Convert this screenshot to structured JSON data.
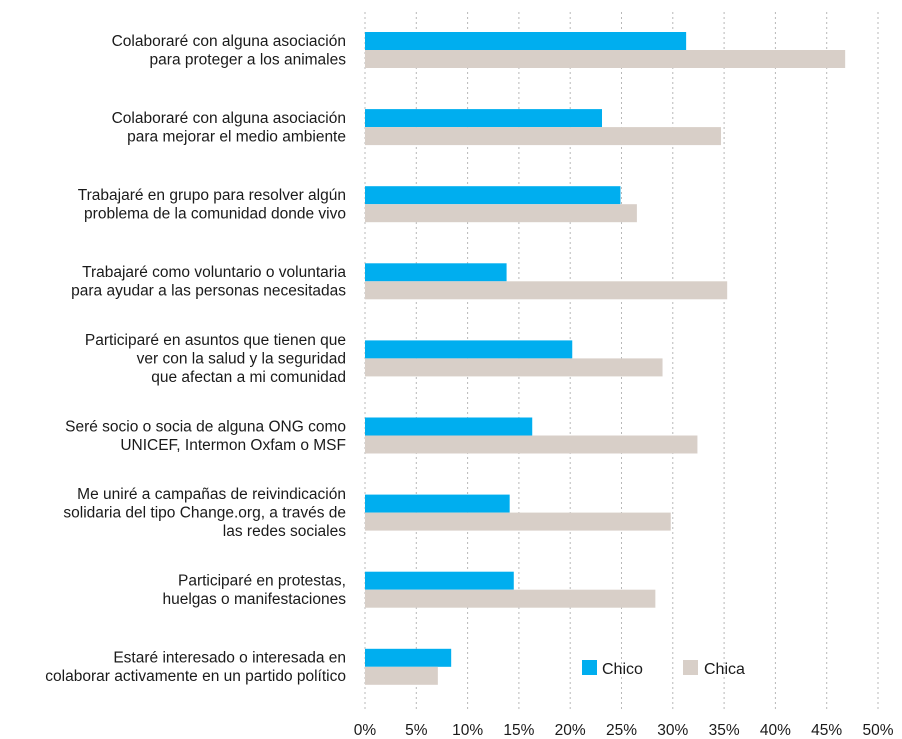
{
  "chart_data": {
    "type": "bar",
    "orientation": "horizontal",
    "title": "",
    "xlabel": "",
    "ylabel": "",
    "xlim": [
      0,
      50
    ],
    "x_ticks": [
      "0%",
      "5%",
      "10%",
      "15%",
      "20%",
      "25%",
      "30%",
      "35%",
      "40%",
      "45%",
      "50%"
    ],
    "grid": "vertical dotted",
    "legend_position": "bottom-right",
    "categories": [
      [
        "Colaboraré con alguna asociación",
        "para proteger a los animales"
      ],
      [
        "Colaboraré con alguna asociación",
        "para mejorar el medio ambiente"
      ],
      [
        "Trabajaré en grupo para resolver algún",
        "problema de la comunidad donde vivo"
      ],
      [
        "Trabajaré como voluntario o voluntaria",
        "para ayudar a las personas necesitadas"
      ],
      [
        "Participaré en asuntos que tienen que",
        "ver con la salud y la seguridad",
        "que afectan a mi comunidad"
      ],
      [
        "Seré socio o socia de alguna ONG como",
        "UNICEF, Intermon Oxfam o MSF"
      ],
      [
        "Me uniré a campañas de reivindicación",
        "solidaria del tipo Change.org, a través de",
        "las redes sociales"
      ],
      [
        "Participaré en protestas,",
        "huelgas o manifestaciones"
      ],
      [
        "Estaré interesado o interesada en",
        "colaborar activamente en un partido político"
      ]
    ],
    "series": [
      {
        "name": "Chico",
        "color": "#00aeef",
        "values": [
          31.3,
          23.1,
          24.9,
          13.8,
          20.2,
          16.3,
          14.1,
          14.5,
          8.4
        ]
      },
      {
        "name": "Chica",
        "color": "#d8cfc8",
        "values": [
          46.8,
          34.7,
          26.5,
          35.3,
          29.0,
          32.4,
          29.8,
          28.3,
          7.1
        ]
      }
    ]
  }
}
